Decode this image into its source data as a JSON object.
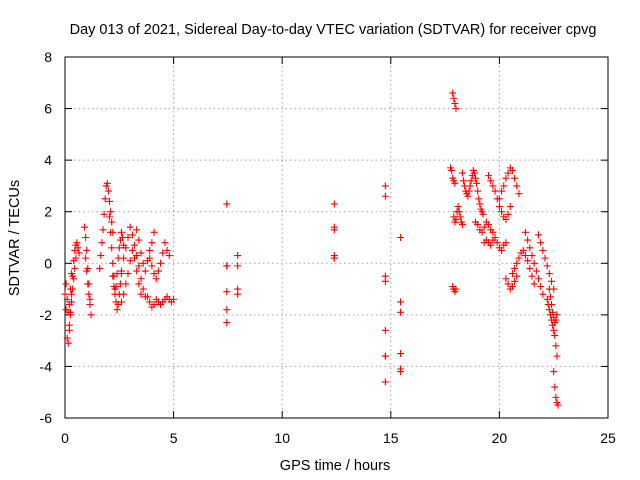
{
  "chart_data": {
    "type": "scatter",
    "title": "Day 013 of 2021, Sidereal Day-to-day VTEC variation (SDTVAR) for receiver cpvg",
    "xlabel": "GPS time / hours",
    "ylabel": "SDTVAR / TECUs",
    "xlim": [
      0,
      25
    ],
    "ylim": [
      -6,
      8
    ],
    "xticks": [
      0,
      5,
      10,
      15,
      20,
      25
    ],
    "yticks": [
      -6,
      -4,
      -2,
      0,
      2,
      4,
      6,
      8
    ],
    "xtick_labels": [
      "0",
      "5",
      "10",
      "15",
      "20",
      "25"
    ],
    "ytick_labels": [
      "-6",
      "-4",
      "-2",
      "0",
      "2",
      "4",
      "6",
      "8"
    ],
    "grid": true,
    "marker": "+",
    "series": [
      {
        "name": "SDTVAR",
        "color": "#ff0000",
        "x": [
          0.0,
          0.05,
          0.1,
          0.15,
          0.2,
          0.25,
          0.3,
          0.35,
          0.4,
          0.45,
          0.5,
          0.55,
          0.6,
          0.65,
          0.05,
          0.1,
          0.15,
          0.2,
          0.25,
          0.3,
          0.2,
          0.25,
          0.3,
          0.35,
          0.4,
          0.45,
          0.5,
          0.9,
          0.95,
          1.0,
          1.05,
          1.1,
          1.15,
          1.2,
          0.95,
          1.0,
          1.05,
          1.1,
          1.15,
          1.6,
          1.65,
          1.7,
          1.75,
          1.8,
          1.85,
          1.9,
          1.95,
          2.0,
          2.05,
          2.1,
          2.15,
          2.2,
          2.05,
          2.1,
          2.15,
          2.2,
          2.25,
          2.3,
          2.35,
          2.4,
          2.45,
          2.5,
          2.55,
          2.6,
          2.2,
          2.25,
          2.3,
          2.35,
          2.4,
          2.45,
          2.5,
          2.55,
          2.6,
          2.65,
          2.7,
          2.6,
          2.7,
          2.8,
          2.9,
          3.0,
          3.1,
          3.2,
          3.3,
          3.4,
          3.5,
          3.6,
          3.7,
          2.6,
          2.7,
          2.8,
          2.9,
          3.0,
          3.1,
          3.2,
          3.3,
          3.4,
          3.5,
          3.3,
          3.4,
          3.5,
          3.6,
          3.7,
          3.8,
          3.9,
          4.0,
          4.1,
          3.8,
          3.9,
          4.0,
          4.1,
          4.2,
          4.3,
          4.4,
          4.5,
          4.6,
          4.7,
          4.8,
          4.9,
          5.0,
          3.9,
          4.0,
          4.1,
          4.2,
          4.3,
          4.4,
          4.5,
          4.6,
          4.7,
          4.8,
          7.45,
          7.45,
          7.45,
          7.45,
          7.45,
          7.45,
          7.95,
          7.95,
          7.95,
          7.95,
          12.4,
          12.4,
          12.4,
          12.4,
          12.4,
          12.4,
          14.75,
          14.75,
          14.75,
          14.75,
          14.75,
          14.75,
          14.75,
          14.75,
          15.45,
          15.45,
          15.45,
          15.45,
          15.45,
          15.45,
          17.75,
          17.8,
          17.85,
          17.9,
          17.95,
          17.85,
          17.9,
          17.95,
          18.0,
          17.85,
          17.9,
          17.95,
          18.0,
          17.9,
          17.95,
          18.0,
          18.05,
          18.1,
          18.15,
          18.2,
          18.25,
          18.3,
          18.3,
          18.35,
          18.4,
          18.45,
          18.5,
          18.55,
          18.6,
          18.65,
          18.7,
          18.75,
          18.8,
          18.85,
          18.9,
          18.95,
          19.0,
          19.05,
          19.1,
          19.15,
          19.2,
          19.25,
          18.9,
          19.0,
          19.1,
          19.2,
          19.3,
          19.4,
          19.5,
          19.6,
          19.7,
          19.3,
          19.4,
          19.5,
          19.6,
          19.7,
          19.8,
          19.9,
          20.0,
          20.1,
          20.2,
          20.3,
          19.5,
          19.6,
          19.7,
          19.8,
          19.9,
          20.0,
          20.1,
          20.2,
          20.3,
          20.4,
          20.5,
          20.0,
          20.1,
          20.2,
          20.3,
          20.4,
          20.5,
          20.6,
          20.7,
          20.8,
          20.9,
          20.3,
          20.4,
          20.5,
          20.6,
          20.7,
          20.8,
          20.6,
          20.7,
          20.8,
          20.9,
          21.0,
          21.1,
          21.2,
          21.3,
          21.4,
          21.5,
          21.6,
          21.2,
          21.3,
          21.4,
          21.5,
          21.6,
          21.7,
          21.8,
          21.9,
          22.0,
          21.8,
          21.9,
          22.0,
          22.1,
          22.2,
          22.3,
          22.4,
          22.5,
          22.2,
          22.25,
          22.3,
          22.35,
          22.4,
          22.45,
          22.5,
          22.55,
          22.6,
          22.65,
          22.3,
          22.35,
          22.4,
          22.45,
          22.5,
          22.55,
          22.6,
          22.65,
          22.5,
          22.55,
          22.6,
          22.65,
          22.7
        ],
        "y": [
          -1.2,
          -1.8,
          -2.9,
          -3.1,
          -2.6,
          -1.9,
          -1.2,
          -0.5,
          0.1,
          0.5,
          0.7,
          0.8,
          0.6,
          0.4,
          -0.8,
          -1.4,
          -1.9,
          -1.6,
          -1.0,
          -0.4,
          -2.4,
          -2.0,
          -1.5,
          -1.0,
          -0.6,
          -0.2,
          0.2,
          1.4,
          1.0,
          0.5,
          -0.2,
          -0.8,
          -1.4,
          -2.0,
          0.2,
          -0.3,
          -0.8,
          -1.2,
          -1.6,
          -0.2,
          0.3,
          0.8,
          1.3,
          1.9,
          2.5,
          3.0,
          3.1,
          2.8,
          2.4,
          2.0,
          1.6,
          1.2,
          1.8,
          1.2,
          0.6,
          0.0,
          -0.5,
          -1.0,
          -1.5,
          -1.8,
          -1.6,
          -1.2,
          -0.8,
          -0.4,
          -0.5,
          -0.9,
          -1.2,
          -0.9,
          -0.4,
          0.2,
          0.6,
          0.9,
          1.2,
          1.0,
          0.7,
          -0.3,
          0.2,
          0.6,
          1.0,
          1.4,
          1.1,
          0.7,
          0.3,
          -0.1,
          -0.6,
          -1.0,
          -1.3,
          -1.5,
          -1.2,
          -0.8,
          -0.4,
          0.1,
          0.5,
          0.2,
          -0.3,
          -0.8,
          -1.2,
          1.3,
          0.9,
          0.4,
          0.0,
          -0.3,
          0.1,
          0.5,
          0.8,
          1.2,
          -1.3,
          -1.5,
          -1.7,
          -1.6,
          -1.4,
          -1.5,
          -1.6,
          -1.5,
          -1.4,
          -1.3,
          -1.4,
          -1.5,
          -1.4,
          0.2,
          -0.1,
          -0.4,
          -0.6,
          -0.3,
          0.0,
          0.4,
          0.8,
          0.5,
          0.3,
          2.3,
          -0.1,
          -1.1,
          -1.8,
          -2.3,
          -0.1,
          0.3,
          -0.1,
          -1.0,
          -1.2,
          2.3,
          1.4,
          1.3,
          0.2,
          0.2,
          0.3,
          3.0,
          2.6,
          -0.5,
          -0.7,
          -2.6,
          -3.6,
          -3.6,
          -4.6,
          1.0,
          -1.5,
          -1.9,
          -3.5,
          -4.1,
          -4.2,
          3.7,
          3.6,
          3.3,
          3.2,
          3.1,
          6.6,
          6.4,
          6.2,
          6.0,
          -0.9,
          -1.0,
          -1.1,
          -1.0,
          1.8,
          1.6,
          1.7,
          2.0,
          2.2,
          2.0,
          1.8,
          1.6,
          1.5,
          3.5,
          3.2,
          3.0,
          2.8,
          2.7,
          2.6,
          2.8,
          3.0,
          3.2,
          3.4,
          3.6,
          3.5,
          3.3,
          3.1,
          2.8,
          2.5,
          2.3,
          2.1,
          2.0,
          1.9,
          1.6,
          1.5,
          1.3,
          1.2,
          1.4,
          1.6,
          1.5,
          1.3,
          1.2,
          0.8,
          0.9,
          0.8,
          0.7,
          0.9,
          1.0,
          0.8,
          0.6,
          0.5,
          0.7,
          0.8,
          3.4,
          3.2,
          3.0,
          2.8,
          2.5,
          2.2,
          2.0,
          1.8,
          1.7,
          1.9,
          2.2,
          2.5,
          2.8,
          3.0,
          3.3,
          3.5,
          3.7,
          3.6,
          3.3,
          3.0,
          2.7,
          -0.6,
          -0.8,
          -1.0,
          -0.9,
          -0.7,
          -0.5,
          -0.4,
          -0.2,
          0.0,
          0.2,
          0.4,
          0.5,
          0.3,
          0.1,
          -0.2,
          -0.5,
          -0.8,
          1.2,
          0.9,
          0.6,
          0.3,
          0.0,
          -0.3,
          -0.6,
          -0.9,
          -1.2,
          1.1,
          0.8,
          0.5,
          0.2,
          -0.1,
          -0.4,
          -0.7,
          -1.0,
          -1.4,
          -1.6,
          -1.8,
          -2.0,
          -2.2,
          -2.4,
          -2.6,
          -2.8,
          -3.2,
          -3.6,
          -1.0,
          -1.3,
          -1.6,
          -1.9,
          -2.1,
          -2.3,
          -2.2,
          -2.0,
          -4.2,
          -4.8,
          -5.2,
          -5.4,
          -5.5
        ]
      }
    ]
  }
}
